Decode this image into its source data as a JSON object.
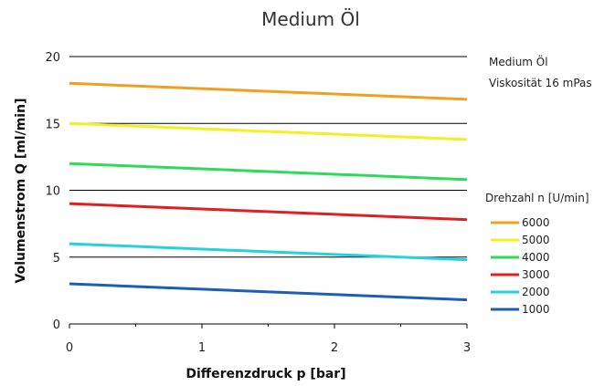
{
  "chart_data": {
    "type": "line",
    "title": "Medium Öl",
    "xlabel": "Differenzdruck p [bar]",
    "ylabel": "Volumenstrom Q [ml/min]",
    "xlim": [
      0,
      3
    ],
    "ylim": [
      0,
      20
    ],
    "xticks": [
      "0",
      "1",
      "2",
      "3"
    ],
    "yticks": [
      "0",
      "5",
      "10",
      "15",
      "20"
    ],
    "grid": "horizontal",
    "notes": [
      "Medium Öl",
      "Viskosität 16 mPas"
    ],
    "legend_title": "Drehzahl n [U/min]",
    "legend_position": "right",
    "series": [
      {
        "name": "6000",
        "color": "#F0A020",
        "x": [
          0,
          3
        ],
        "values": [
          18.0,
          16.8
        ]
      },
      {
        "name": "5000",
        "color": "#F2F020",
        "x": [
          0,
          3
        ],
        "values": [
          15.0,
          13.8
        ]
      },
      {
        "name": "4000",
        "color": "#2EDB57",
        "x": [
          0,
          3
        ],
        "values": [
          12.0,
          10.8
        ]
      },
      {
        "name": "3000",
        "color": "#E02020",
        "x": [
          0,
          3
        ],
        "values": [
          9.0,
          7.8
        ]
      },
      {
        "name": "2000",
        "color": "#22D3DD",
        "x": [
          0,
          3
        ],
        "values": [
          6.0,
          4.8
        ]
      },
      {
        "name": "1000",
        "color": "#1B5FB5",
        "x": [
          0,
          3
        ],
        "values": [
          3.0,
          1.8
        ]
      }
    ]
  }
}
